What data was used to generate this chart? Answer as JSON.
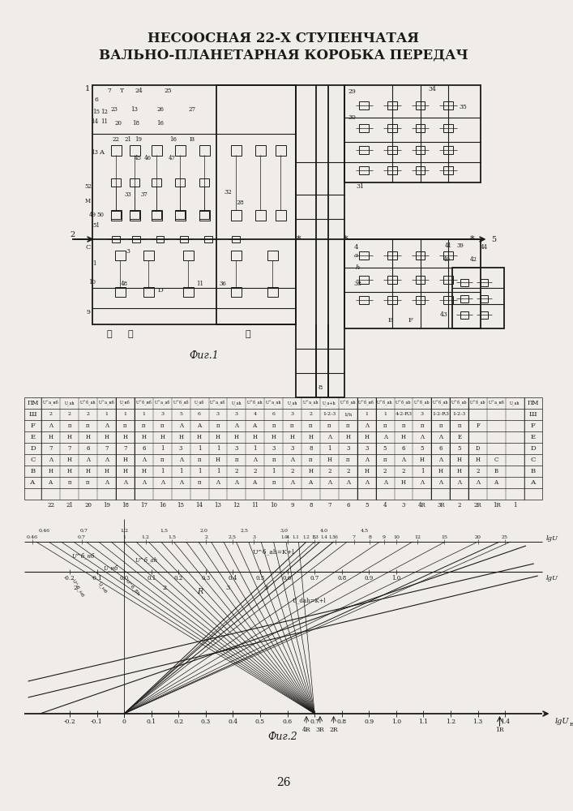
{
  "title_line1": "НЕСООСНАЯ 22-Х СТУПЕНЧАТАЯ",
  "title_line2": "ВАЛЬНО-ПЛАНЕТАРНАЯ КОРОБКА ПЕРЕДАЧ",
  "page_number": "26",
  "fig1_caption": "Фиг.1",
  "fig2_caption": "Фиг.2",
  "bg_color": "#f0ede8",
  "line_color": "#1a1a1a",
  "title_fontsize": 11.5,
  "page_num_fontsize": 10
}
